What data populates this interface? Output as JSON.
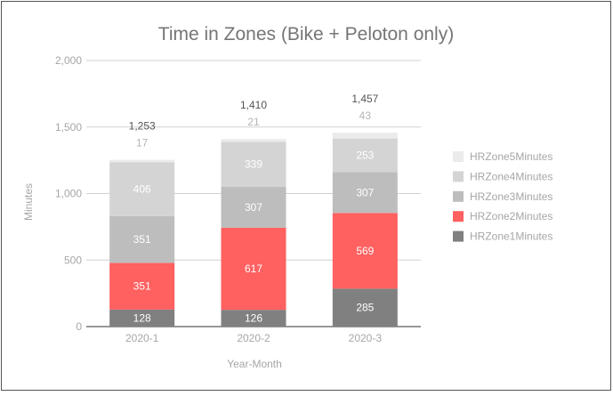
{
  "chart_data": {
    "type": "bar",
    "stacked": true,
    "title": "Time in Zones (Bike + Peloton only)",
    "xlabel": "Year-Month",
    "ylabel": "Minutes",
    "categories": [
      "2020-1",
      "2020-2",
      "2020-3"
    ],
    "ylim": [
      0,
      2000
    ],
    "yticks": [
      0,
      500,
      1000,
      1500,
      2000
    ],
    "ytick_labels": [
      "0",
      "500",
      "1,000",
      "1,500",
      "2,000"
    ],
    "grid": true,
    "legend_position": "right",
    "series": [
      {
        "name": "HRZone1Minutes",
        "values": [
          128,
          126,
          285
        ],
        "color": "#808080",
        "label_color": "#ffffff"
      },
      {
        "name": "HRZone2Minutes",
        "values": [
          351,
          617,
          569
        ],
        "color": "#ff6060",
        "label_color": "#ffffff"
      },
      {
        "name": "HRZone3Minutes",
        "values": [
          351,
          307,
          307
        ],
        "color": "#bdbdbd",
        "label_color": "#ffffff"
      },
      {
        "name": "HRZone4Minutes",
        "values": [
          406,
          339,
          253
        ],
        "color": "#d4d4d4",
        "label_color": "#ffffff"
      },
      {
        "name": "HRZone5Minutes",
        "values": [
          17,
          21,
          43
        ],
        "color": "#ebebeb",
        "label_color": "#b5b5b5"
      }
    ],
    "totals": [
      1253,
      1410,
      1457
    ],
    "total_labels": [
      "1,253",
      "1,410",
      "1,457"
    ]
  }
}
